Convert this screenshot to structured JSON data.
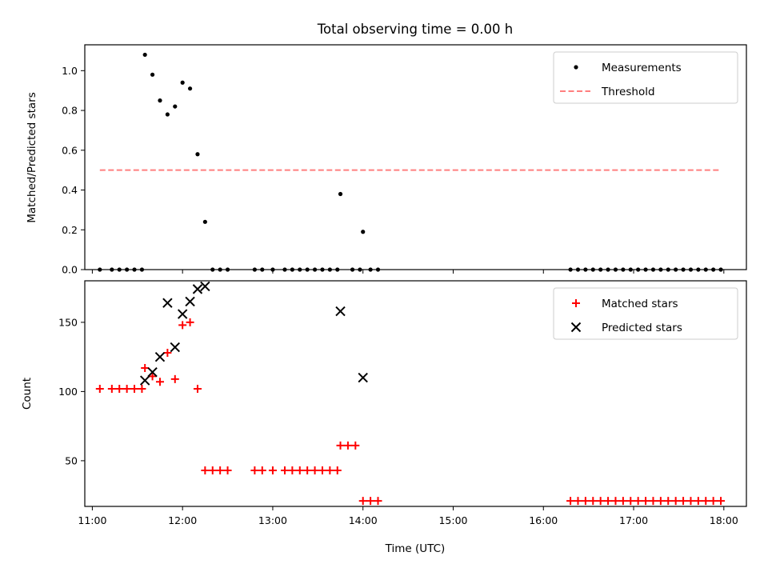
{
  "chart_data": {
    "title": "Total observing time = 0.00 h",
    "xlabel": "Time (UTC)",
    "x_ticks": [
      "11:00",
      "12:00",
      "13:00",
      "14:00",
      "15:00",
      "16:00",
      "17:00",
      "18:00"
    ],
    "xlim": [
      "10:55",
      "18:15"
    ],
    "panels": [
      {
        "type": "scatter",
        "ylabel": "Matched/Predicted stars",
        "ylim": [
          0,
          1.13
        ],
        "y_ticks": [
          "0.0",
          "0.2",
          "0.4",
          "0.6",
          "0.8",
          "1.0"
        ],
        "legend_position": "top-right",
        "series": [
          {
            "name": "Measurements",
            "marker": "dot",
            "color": "#000000",
            "points": [
              [
                "11:05",
                0
              ],
              [
                "11:13",
                0
              ],
              [
                "11:18",
                0
              ],
              [
                "11:23",
                0
              ],
              [
                "11:28",
                0
              ],
              [
                "11:33",
                0
              ],
              [
                "11:35",
                1.08
              ],
              [
                "11:40",
                0.98
              ],
              [
                "11:45",
                0.85
              ],
              [
                "11:50",
                0.78
              ],
              [
                "11:55",
                0.82
              ],
              [
                "12:00",
                0.94
              ],
              [
                "12:05",
                0.91
              ],
              [
                "12:10",
                0.58
              ],
              [
                "12:15",
                0.24
              ],
              [
                "12:20",
                0
              ],
              [
                "12:25",
                0
              ],
              [
                "12:30",
                0
              ],
              [
                "12:48",
                0
              ],
              [
                "12:53",
                0
              ],
              [
                "13:00",
                0
              ],
              [
                "13:08",
                0
              ],
              [
                "13:13",
                0
              ],
              [
                "13:18",
                0
              ],
              [
                "13:23",
                0
              ],
              [
                "13:28",
                0
              ],
              [
                "13:33",
                0
              ],
              [
                "13:38",
                0
              ],
              [
                "13:43",
                0
              ],
              [
                "13:45",
                0.38
              ],
              [
                "13:53",
                0
              ],
              [
                "13:58",
                0
              ],
              [
                "14:00",
                0.19
              ],
              [
                "14:05",
                0
              ],
              [
                "14:10",
                0
              ],
              [
                "16:18",
                0
              ],
              [
                "16:23",
                0
              ],
              [
                "16:28",
                0
              ],
              [
                "16:33",
                0
              ],
              [
                "16:38",
                0
              ],
              [
                "16:43",
                0
              ],
              [
                "16:48",
                0
              ],
              [
                "16:53",
                0
              ],
              [
                "16:58",
                0
              ],
              [
                "17:03",
                0
              ],
              [
                "17:08",
                0
              ],
              [
                "17:13",
                0
              ],
              [
                "17:18",
                0
              ],
              [
                "17:23",
                0
              ],
              [
                "17:28",
                0
              ],
              [
                "17:33",
                0
              ],
              [
                "17:38",
                0
              ],
              [
                "17:43",
                0
              ],
              [
                "17:48",
                0
              ],
              [
                "17:53",
                0
              ],
              [
                "17:58",
                0
              ]
            ]
          },
          {
            "name": "Threshold",
            "type": "line",
            "style": "dashed",
            "color": "#ff7f7f",
            "points": [
              [
                "11:05",
                0.5
              ],
              [
                "17:58",
                0.5
              ]
            ]
          }
        ]
      },
      {
        "type": "scatter",
        "ylabel": "Count",
        "ylim": [
          17,
          180
        ],
        "y_ticks": [
          "50",
          "100",
          "150"
        ],
        "legend_position": "top-right",
        "series": [
          {
            "name": "Matched stars",
            "marker": "plus",
            "color": "#ff0000",
            "points": [
              [
                "11:05",
                102
              ],
              [
                "11:13",
                102
              ],
              [
                "11:18",
                102
              ],
              [
                "11:23",
                102
              ],
              [
                "11:28",
                102
              ],
              [
                "11:33",
                102
              ],
              [
                "11:35",
                117
              ],
              [
                "11:40",
                111
              ],
              [
                "11:45",
                107
              ],
              [
                "11:50",
                128
              ],
              [
                "11:55",
                109
              ],
              [
                "12:00",
                148
              ],
              [
                "12:05",
                150
              ],
              [
                "12:10",
                102
              ],
              [
                "12:15",
                43
              ],
              [
                "12:20",
                43
              ],
              [
                "12:25",
                43
              ],
              [
                "12:30",
                43
              ],
              [
                "12:48",
                43
              ],
              [
                "12:53",
                43
              ],
              [
                "13:00",
                43
              ],
              [
                "13:08",
                43
              ],
              [
                "13:13",
                43
              ],
              [
                "13:18",
                43
              ],
              [
                "13:23",
                43
              ],
              [
                "13:28",
                43
              ],
              [
                "13:33",
                43
              ],
              [
                "13:38",
                43
              ],
              [
                "13:43",
                43
              ],
              [
                "13:45",
                61
              ],
              [
                "13:50",
                61
              ],
              [
                "13:55",
                61
              ],
              [
                "14:00",
                21
              ],
              [
                "14:05",
                21
              ],
              [
                "14:10",
                21
              ],
              [
                "16:18",
                21
              ],
              [
                "16:23",
                21
              ],
              [
                "16:28",
                21
              ],
              [
                "16:33",
                21
              ],
              [
                "16:38",
                21
              ],
              [
                "16:43",
                21
              ],
              [
                "16:48",
                21
              ],
              [
                "16:53",
                21
              ],
              [
                "16:58",
                21
              ],
              [
                "17:03",
                21
              ],
              [
                "17:08",
                21
              ],
              [
                "17:13",
                21
              ],
              [
                "17:18",
                21
              ],
              [
                "17:23",
                21
              ],
              [
                "17:28",
                21
              ],
              [
                "17:33",
                21
              ],
              [
                "17:38",
                21
              ],
              [
                "17:43",
                21
              ],
              [
                "17:48",
                21
              ],
              [
                "17:53",
                21
              ],
              [
                "17:58",
                21
              ]
            ]
          },
          {
            "name": "Predicted stars",
            "marker": "x",
            "color": "#000000",
            "points": [
              [
                "11:35",
                108
              ],
              [
                "11:40",
                114
              ],
              [
                "11:45",
                125
              ],
              [
                "11:50",
                164
              ],
              [
                "11:55",
                132
              ],
              [
                "12:00",
                156
              ],
              [
                "12:05",
                165
              ],
              [
                "12:10",
                174
              ],
              [
                "12:15",
                176
              ],
              [
                "13:45",
                158
              ],
              [
                "14:00",
                110
              ]
            ]
          }
        ]
      }
    ]
  }
}
